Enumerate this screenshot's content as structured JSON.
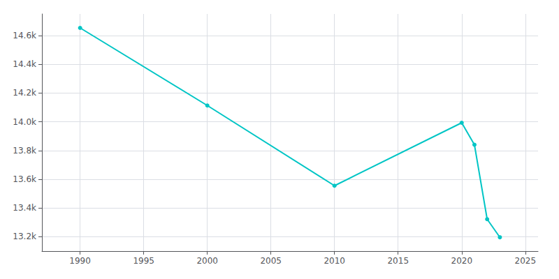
{
  "chart_data": {
    "type": "line",
    "x": [
      1990,
      2000,
      2010,
      2020,
      2021,
      2022,
      2023
    ],
    "values": [
      14653,
      14113,
      13555,
      13993,
      13840,
      13322,
      13196
    ],
    "color": "#00C5C5",
    "marker": "circle",
    "xlim": [
      1987,
      2026
    ],
    "ylim": [
      13100,
      14750
    ],
    "xticks": [
      1990,
      1995,
      2000,
      2005,
      2010,
      2015,
      2020,
      2025
    ],
    "yticks": [
      {
        "value": 13200,
        "label": "13.2k"
      },
      {
        "value": 13400,
        "label": "13.4k"
      },
      {
        "value": 13600,
        "label": "13.6k"
      },
      {
        "value": 13800,
        "label": "13.8k"
      },
      {
        "value": 14000,
        "label": "14.0k"
      },
      {
        "value": 14200,
        "label": "14.2k"
      },
      {
        "value": 14400,
        "label": "14.4k"
      },
      {
        "value": 14600,
        "label": "14.6k"
      }
    ],
    "grid": true
  }
}
